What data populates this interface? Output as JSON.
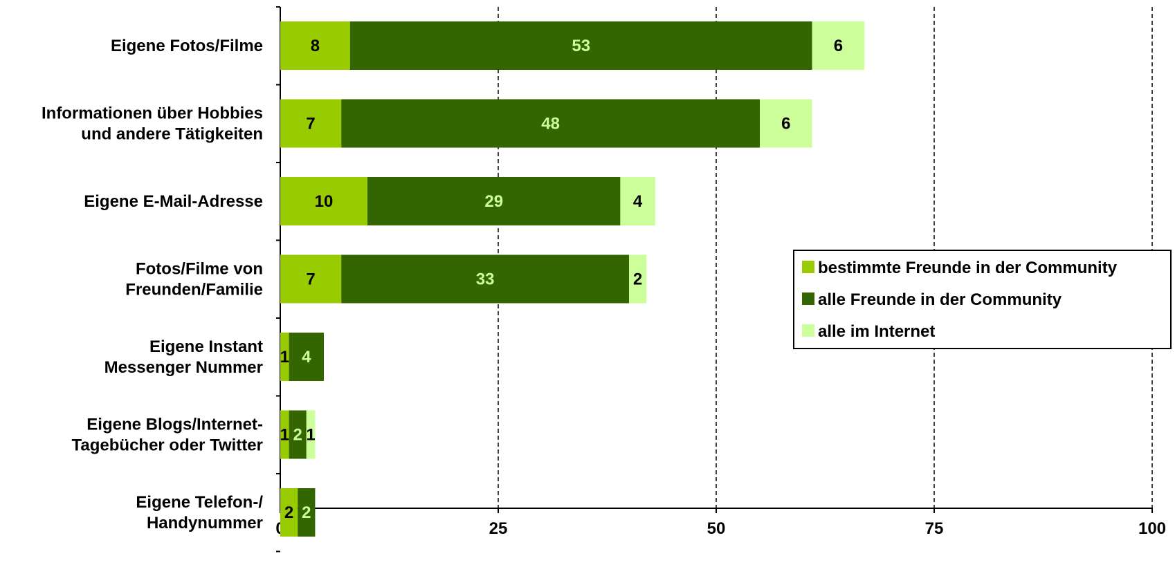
{
  "chart_data": {
    "type": "bar",
    "orientation": "horizontal",
    "stacked": true,
    "categories": [
      [
        "Eigene Fotos/Filme"
      ],
      [
        "Informationen über Hobbies",
        "und andere  Tätigkeiten"
      ],
      [
        "Eigene E-Mail-Adresse"
      ],
      [
        "Fotos/Filme von",
        "Freunden/Familie"
      ],
      [
        "Eigene Instant",
        "Messenger Nummer"
      ],
      [
        "Eigene Blogs/Internet-",
        "Tagebücher oder Twitter"
      ],
      [
        "Eigene Telefon-/",
        "Handynummer"
      ]
    ],
    "series": [
      {
        "name": "bestimmte Freunde  in der  Community",
        "color": "#99cc00",
        "label_color": "#000000",
        "values": [
          8,
          7,
          10,
          7,
          1,
          1,
          2
        ]
      },
      {
        "name": "alle Freunde  in der Community",
        "color": "#336600",
        "label_color": "#ccff99",
        "values": [
          53,
          48,
          29,
          33,
          4,
          2,
          2
        ]
      },
      {
        "name": "alle im Internet",
        "color": "#ccff99",
        "label_color": "#000000",
        "values": [
          6,
          6,
          4,
          2,
          0,
          1,
          0
        ]
      }
    ],
    "xlim": [
      0,
      100
    ],
    "xticks": [
      "0",
      "25",
      "50",
      "75",
      "100"
    ],
    "grid": "vertical dashed",
    "legend_position": "right-middle"
  }
}
